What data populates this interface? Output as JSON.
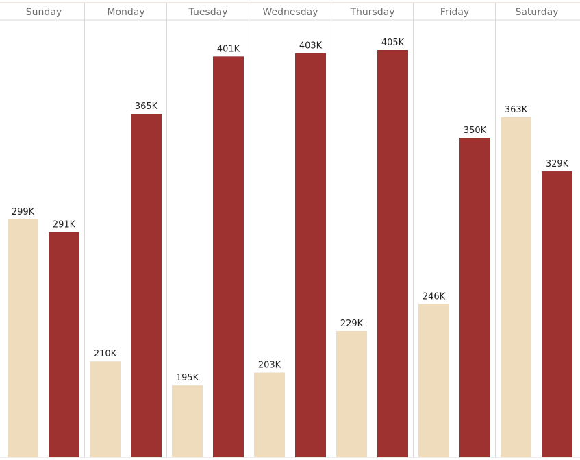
{
  "chart_data": {
    "type": "bar",
    "categories": [
      "Sunday",
      "Monday",
      "Tuesday",
      "Wednesday",
      "Thursday",
      "Friday",
      "Saturday"
    ],
    "series": [
      {
        "values": [
          299,
          210,
          195,
          203,
          229,
          246,
          363
        ],
        "labels": [
          "299K",
          "210K",
          "195K",
          "203K",
          "229K",
          "246K",
          "363K"
        ],
        "color": "#EEDCBD"
      },
      {
        "values": [
          291,
          365,
          401,
          403,
          405,
          350,
          329
        ],
        "labels": [
          "291K",
          "365K",
          "401K",
          "403K",
          "405K",
          "350K",
          "329K"
        ],
        "color": "#9E3230"
      }
    ],
    "title": "",
    "xlabel": "",
    "ylabel": "",
    "ylim": [
      150,
      420
    ],
    "unit": "K",
    "grid": false,
    "legend": "none"
  }
}
